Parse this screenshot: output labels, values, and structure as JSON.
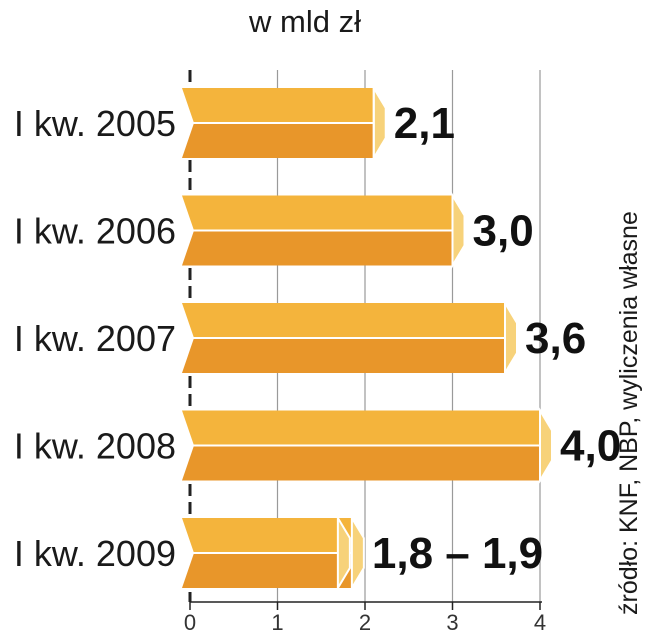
{
  "chart_data": {
    "type": "bar",
    "orientation": "horizontal",
    "unit_label": "w mld zł",
    "categories": [
      "I kw. 2005",
      "I kw. 2006",
      "I kw. 2007",
      "I kw. 2008",
      "I kw. 2009"
    ],
    "values": [
      2.1,
      3.0,
      3.6,
      4.0,
      1.85
    ],
    "value_labels": [
      "2,1",
      "3,0",
      "3,6",
      "4,0",
      "1,8 – 1,9"
    ],
    "xlim": [
      0,
      4
    ],
    "x_ticks": [
      "0",
      "1",
      "2",
      "3",
      "4"
    ],
    "grid": true,
    "source": "źródło: KNF, NBP, wyliczenia własne",
    "colors": {
      "bar_top": "#f4b43c",
      "bar_bottom": "#e8962a",
      "bar_cap": "#f7d27a",
      "bar_edge": "#ffffff",
      "axis": "#222222",
      "grid": "#9a9a9a",
      "text": "#1a1a1a"
    }
  }
}
